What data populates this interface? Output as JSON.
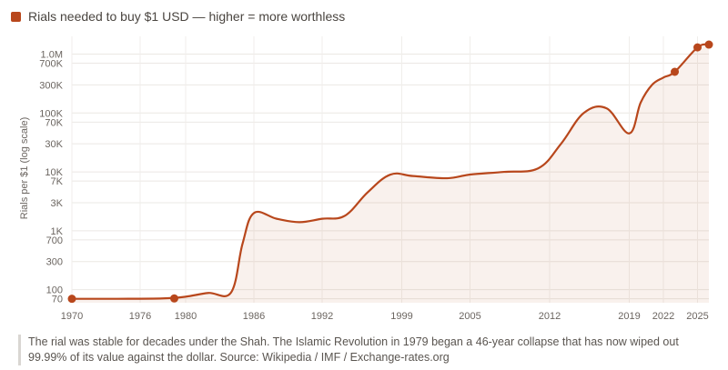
{
  "legend": {
    "label": "Rials needed to buy $1 USD — higher = more worthless",
    "color": "#b8471c"
  },
  "caption": "The rial was stable for decades under the Shah. The Islamic Revolution in 1979 began a 46-year collapse that has now wiped out 99.99% of its value against the dollar. Source: Wikipedia / IMF / Exchange-rates.org",
  "chart_data": {
    "type": "area",
    "scale": "log",
    "ylabel": "Rials per $1 (log scale)",
    "xlim": [
      1970,
      2026
    ],
    "ylim": [
      60,
      2000000
    ],
    "grid": true,
    "x_ticks": [
      {
        "value": 1970,
        "label": "1970"
      },
      {
        "value": 1976,
        "label": "1976"
      },
      {
        "value": 1980,
        "label": "1980"
      },
      {
        "value": 1986,
        "label": "1986"
      },
      {
        "value": 1992,
        "label": "1992"
      },
      {
        "value": 1999,
        "label": "1999"
      },
      {
        "value": 2005,
        "label": "2005"
      },
      {
        "value": 2012,
        "label": "2012"
      },
      {
        "value": 2019,
        "label": "2019"
      },
      {
        "value": 2022,
        "label": "2022"
      },
      {
        "value": 2025,
        "label": "2025"
      }
    ],
    "y_ticks": [
      {
        "value": 70,
        "label": "70"
      },
      {
        "value": 100,
        "label": "100"
      },
      {
        "value": 300,
        "label": "300"
      },
      {
        "value": 700,
        "label": "700"
      },
      {
        "value": 1000,
        "label": "1K"
      },
      {
        "value": 3000,
        "label": "3K"
      },
      {
        "value": 7000,
        "label": "7K"
      },
      {
        "value": 10000,
        "label": "10K"
      },
      {
        "value": 30000,
        "label": "30K"
      },
      {
        "value": 70000,
        "label": "70K"
      },
      {
        "value": 100000,
        "label": "100K"
      },
      {
        "value": 300000,
        "label": "300K"
      },
      {
        "value": 700000,
        "label": "700K"
      },
      {
        "value": 1000000,
        "label": "1.0M"
      }
    ],
    "series": [
      {
        "color": "#b8471c",
        "points": [
          {
            "x": 1970,
            "y": 70
          },
          {
            "x": 1974,
            "y": 70
          },
          {
            "x": 1978,
            "y": 71
          },
          {
            "x": 1980,
            "y": 76
          },
          {
            "x": 1982,
            "y": 88
          },
          {
            "x": 1984,
            "y": 90
          },
          {
            "x": 1985,
            "y": 600
          },
          {
            "x": 1986,
            "y": 2000
          },
          {
            "x": 1988,
            "y": 1600
          },
          {
            "x": 1990,
            "y": 1400
          },
          {
            "x": 1992,
            "y": 1600
          },
          {
            "x": 1994,
            "y": 1800
          },
          {
            "x": 1996,
            "y": 4500
          },
          {
            "x": 1998,
            "y": 9000
          },
          {
            "x": 2000,
            "y": 8500
          },
          {
            "x": 2003,
            "y": 7800
          },
          {
            "x": 2005,
            "y": 9000
          },
          {
            "x": 2008,
            "y": 10000
          },
          {
            "x": 2011,
            "y": 11500
          },
          {
            "x": 2013,
            "y": 30000
          },
          {
            "x": 2015,
            "y": 100000
          },
          {
            "x": 2017,
            "y": 120000
          },
          {
            "x": 2019,
            "y": 45000
          },
          {
            "x": 2020,
            "y": 150000
          },
          {
            "x": 2021,
            "y": 300000
          },
          {
            "x": 2022,
            "y": 400000
          },
          {
            "x": 2023,
            "y": 500000
          },
          {
            "x": 2025,
            "y": 1300000
          },
          {
            "x": 2026,
            "y": 1450000
          }
        ],
        "markers": [
          {
            "x": 1970,
            "y": 70
          },
          {
            "x": 1979,
            "y": 71
          },
          {
            "x": 2023,
            "y": 500000
          },
          {
            "x": 2025,
            "y": 1300000
          },
          {
            "x": 2026,
            "y": 1450000
          }
        ]
      }
    ]
  }
}
